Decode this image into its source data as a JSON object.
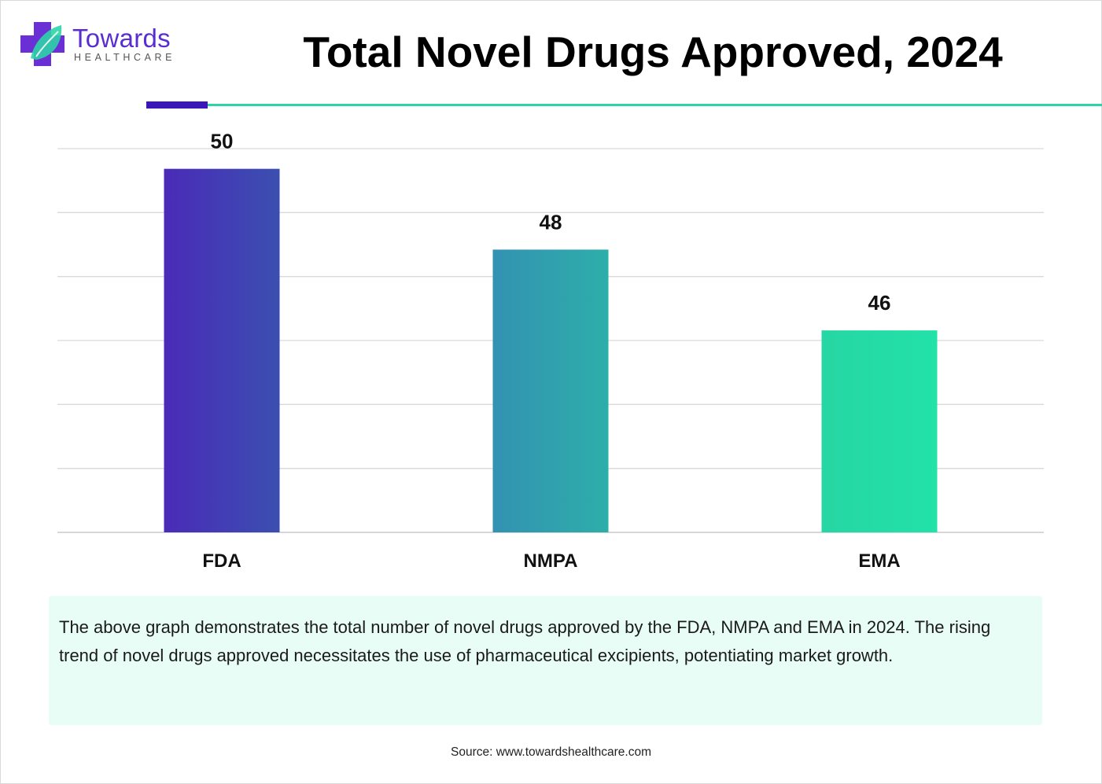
{
  "brand": {
    "name": "Towards",
    "tagline": "HEALTHCARE"
  },
  "colors": {
    "accent_purple": "#3a16b8",
    "accent_teal": "#2ed4a7"
  },
  "chart_data": {
    "type": "bar",
    "title": "Total Novel Drugs Approved, 2024",
    "categories": [
      "FDA",
      "NMPA",
      "EMA"
    ],
    "values": [
      50,
      48,
      46
    ],
    "bar_colors": [
      [
        "#4a2bb8",
        "#3b4fb0"
      ],
      [
        "#3392b2",
        "#2daeaa"
      ],
      [
        "#26d6a4",
        "#22e2a8"
      ]
    ],
    "xlabel": "",
    "ylabel": "",
    "ylim": [
      41,
      50.5
    ],
    "gridlines": 7,
    "grid": true,
    "legend": "none"
  },
  "description": "The above graph demonstrates the total number of novel drugs approved by the FDA, NMPA and EMA in 2024. The rising trend of novel drugs approved necessitates the use of pharmaceutical excipients, potentiating market growth.",
  "source": "Source: www.towardshealthcare.com"
}
